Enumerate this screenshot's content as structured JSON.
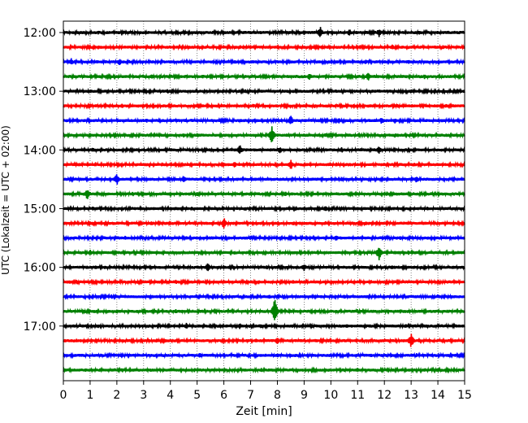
{
  "chart_data": {
    "type": "line",
    "title": "",
    "xlabel": "Zeit  [min]",
    "ylabel": "UTC (Lokalzeit = UTC + 02:00)",
    "xlim": [
      0,
      15
    ],
    "x_ticks": [
      "0",
      "1",
      "2",
      "3",
      "4",
      "5",
      "6",
      "7",
      "8",
      "9",
      "10",
      "11",
      "12",
      "13",
      "14",
      "15"
    ],
    "y_ticks": [
      "12:00",
      "13:00",
      "14:00",
      "15:00",
      "16:00",
      "17:00"
    ],
    "grid": {
      "vertical": true,
      "style": "dotted"
    },
    "trace_colors": [
      "#000000",
      "#ff0000",
      "#0000ff",
      "#008000"
    ],
    "traces": [
      {
        "start": "12:00",
        "events": [
          {
            "t": 1.3,
            "a": 3
          },
          {
            "t": 9.0,
            "a": 3
          },
          {
            "t": 9.6,
            "a": 8
          },
          {
            "t": 10.7,
            "a": 5
          },
          {
            "t": 11.8,
            "a": 6
          },
          {
            "t": 13.3,
            "a": 3
          }
        ]
      },
      {
        "start": "12:15",
        "events": [
          {
            "t": 1.3,
            "a": 3
          },
          {
            "t": 4.7,
            "a": 3
          },
          {
            "t": 6.6,
            "a": 3
          },
          {
            "t": 11.1,
            "a": 3
          },
          {
            "t": 12.3,
            "a": 4
          },
          {
            "t": 14.2,
            "a": 3
          }
        ]
      },
      {
        "start": "12:30",
        "events": [
          {
            "t": 0.3,
            "a": 5
          },
          {
            "t": 2.1,
            "a": 5
          },
          {
            "t": 6.4,
            "a": 3
          },
          {
            "t": 11.3,
            "a": 3
          },
          {
            "t": 12.9,
            "a": 3
          }
        ]
      },
      {
        "start": "12:45",
        "events": [
          {
            "t": 3.3,
            "a": 3
          },
          {
            "t": 5.2,
            "a": 3
          },
          {
            "t": 9.2,
            "a": 5
          },
          {
            "t": 11.4,
            "a": 6
          },
          {
            "t": 13.5,
            "a": 3
          }
        ]
      },
      {
        "start": "13:00",
        "events": [
          {
            "t": 1.0,
            "a": 3
          },
          {
            "t": 3.9,
            "a": 3
          },
          {
            "t": 6.8,
            "a": 3
          },
          {
            "t": 10.2,
            "a": 3
          },
          {
            "t": 13.0,
            "a": 3
          }
        ]
      },
      {
        "start": "13:15",
        "events": [
          {
            "t": 2.2,
            "a": 3
          },
          {
            "t": 7.1,
            "a": 3
          },
          {
            "t": 9.4,
            "a": 3
          },
          {
            "t": 12.5,
            "a": 3
          },
          {
            "t": 14.3,
            "a": 3
          }
        ]
      },
      {
        "start": "13:30",
        "events": [
          {
            "t": 3.1,
            "a": 3
          },
          {
            "t": 8.5,
            "a": 7
          },
          {
            "t": 10.3,
            "a": 4
          },
          {
            "t": 11.9,
            "a": 5
          },
          {
            "t": 12.4,
            "a": 4
          }
        ]
      },
      {
        "start": "13:45",
        "events": [
          {
            "t": 4.5,
            "a": 3
          },
          {
            "t": 7.8,
            "a": 13
          },
          {
            "t": 9.8,
            "a": 3
          },
          {
            "t": 12.4,
            "a": 3
          }
        ]
      },
      {
        "start": "14:00",
        "events": [
          {
            "t": 1.1,
            "a": 3
          },
          {
            "t": 6.6,
            "a": 7
          },
          {
            "t": 8.1,
            "a": 5
          },
          {
            "t": 10.4,
            "a": 4
          },
          {
            "t": 11.8,
            "a": 5
          }
        ]
      },
      {
        "start": "14:15",
        "events": [
          {
            "t": 1.2,
            "a": 3
          },
          {
            "t": 3.7,
            "a": 3
          },
          {
            "t": 6.4,
            "a": 4
          },
          {
            "t": 8.5,
            "a": 7
          },
          {
            "t": 10.2,
            "a": 3
          },
          {
            "t": 13.1,
            "a": 3
          }
        ]
      },
      {
        "start": "14:30",
        "events": [
          {
            "t": 2.0,
            "a": 8
          },
          {
            "t": 4.5,
            "a": 5
          },
          {
            "t": 7.2,
            "a": 3
          },
          {
            "t": 10.4,
            "a": 3
          },
          {
            "t": 13.2,
            "a": 5
          }
        ]
      },
      {
        "start": "14:45",
        "events": [
          {
            "t": 0.9,
            "a": 8
          },
          {
            "t": 2.6,
            "a": 3
          },
          {
            "t": 5.0,
            "a": 3
          },
          {
            "t": 8.3,
            "a": 3
          },
          {
            "t": 12.1,
            "a": 3
          }
        ]
      },
      {
        "start": "15:00",
        "events": [
          {
            "t": 1.1,
            "a": 3
          },
          {
            "t": 4.8,
            "a": 3
          },
          {
            "t": 6.8,
            "a": 3
          },
          {
            "t": 8.7,
            "a": 3
          },
          {
            "t": 9.8,
            "a": 4
          },
          {
            "t": 13.6,
            "a": 3
          }
        ]
      },
      {
        "start": "15:15",
        "events": [
          {
            "t": 1.1,
            "a": 3
          },
          {
            "t": 3.3,
            "a": 3
          },
          {
            "t": 6.0,
            "a": 8
          },
          {
            "t": 8.6,
            "a": 3
          },
          {
            "t": 9.8,
            "a": 3
          },
          {
            "t": 11.3,
            "a": 3
          }
        ]
      },
      {
        "start": "15:30",
        "events": [
          {
            "t": 2.3,
            "a": 3
          },
          {
            "t": 4.6,
            "a": 3
          },
          {
            "t": 7.0,
            "a": 3
          },
          {
            "t": 10.2,
            "a": 4
          },
          {
            "t": 12.6,
            "a": 3
          }
        ]
      },
      {
        "start": "15:45",
        "events": [
          {
            "t": 1.0,
            "a": 4
          },
          {
            "t": 4.1,
            "a": 3
          },
          {
            "t": 6.4,
            "a": 3
          },
          {
            "t": 11.8,
            "a": 10
          },
          {
            "t": 12.9,
            "a": 3
          }
        ]
      },
      {
        "start": "16:00",
        "events": [
          {
            "t": 1.2,
            "a": 3
          },
          {
            "t": 5.4,
            "a": 6
          },
          {
            "t": 7.6,
            "a": 3
          },
          {
            "t": 9.0,
            "a": 5
          },
          {
            "t": 12.3,
            "a": 3
          }
        ]
      },
      {
        "start": "16:15",
        "events": [
          {
            "t": 0.5,
            "a": 3
          },
          {
            "t": 4.2,
            "a": 3
          },
          {
            "t": 7.3,
            "a": 3
          },
          {
            "t": 8.6,
            "a": 3
          },
          {
            "t": 11.5,
            "a": 3
          }
        ]
      },
      {
        "start": "16:30",
        "events": [
          {
            "t": 1.8,
            "a": 3
          },
          {
            "t": 5.0,
            "a": 3
          },
          {
            "t": 7.7,
            "a": 3
          },
          {
            "t": 10.5,
            "a": 3
          },
          {
            "t": 14.0,
            "a": 3
          }
        ]
      },
      {
        "start": "16:45",
        "events": [
          {
            "t": 2.0,
            "a": 3
          },
          {
            "t": 4.2,
            "a": 3
          },
          {
            "t": 7.9,
            "a": 17
          },
          {
            "t": 11.0,
            "a": 3
          },
          {
            "t": 12.6,
            "a": 3
          }
        ]
      },
      {
        "start": "17:00",
        "events": [
          {
            "t": 1.3,
            "a": 3
          },
          {
            "t": 4.6,
            "a": 4
          },
          {
            "t": 6.6,
            "a": 4
          },
          {
            "t": 7.4,
            "a": 3
          },
          {
            "t": 10.6,
            "a": 3
          },
          {
            "t": 12.8,
            "a": 3
          }
        ]
      },
      {
        "start": "17:15",
        "events": [
          {
            "t": 0.5,
            "a": 3
          },
          {
            "t": 3.5,
            "a": 3
          },
          {
            "t": 7.2,
            "a": 3
          },
          {
            "t": 8.0,
            "a": 5
          },
          {
            "t": 9.9,
            "a": 3
          },
          {
            "t": 13.0,
            "a": 10
          }
        ]
      },
      {
        "start": "17:30",
        "events": [
          {
            "t": 1.4,
            "a": 3
          },
          {
            "t": 5.1,
            "a": 4
          },
          {
            "t": 8.0,
            "a": 3
          },
          {
            "t": 11.5,
            "a": 3
          },
          {
            "t": 13.2,
            "a": 3
          }
        ]
      },
      {
        "start": "17:45",
        "events": [
          {
            "t": 2.2,
            "a": 3
          },
          {
            "t": 4.9,
            "a": 3
          },
          {
            "t": 7.4,
            "a": 3
          },
          {
            "t": 11.0,
            "a": 3
          },
          {
            "t": 13.5,
            "a": 3
          }
        ]
      }
    ]
  }
}
